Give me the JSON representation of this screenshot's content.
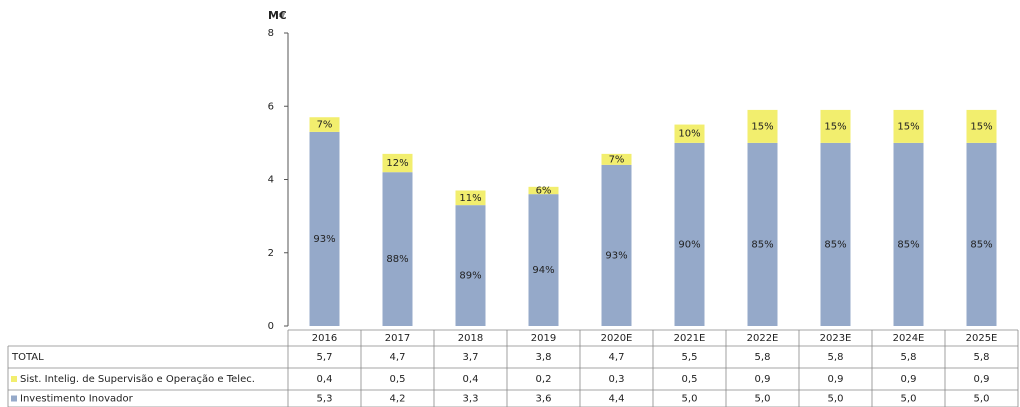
{
  "chart_data": {
    "type": "stacked-bar",
    "y_label": "M€",
    "categories": [
      "2016",
      "2017",
      "2018",
      "2019",
      "2020E",
      "2021E",
      "2022E",
      "2023E",
      "2024E",
      "2025E"
    ],
    "series": [
      {
        "name": "Investimento Inovador",
        "color": "#95a9c9",
        "values": [
          5.3,
          4.2,
          3.3,
          3.6,
          4.4,
          5.0,
          5.0,
          5.0,
          5.0,
          5.0
        ],
        "value_labels": [
          "5,3",
          "4,2",
          "3,3",
          "3,6",
          "4,4",
          "5,0",
          "5,0",
          "5,0",
          "5,0",
          "5,0"
        ],
        "share_labels": [
          "93%",
          "88%",
          "89%",
          "94%",
          "93%",
          "90%",
          "85%",
          "85%",
          "85%",
          "85%"
        ]
      },
      {
        "name": "Sist. Intelig. de Supervisão e Operação e Telec.",
        "color": "#f2ee6e",
        "values": [
          0.4,
          0.5,
          0.4,
          0.2,
          0.3,
          0.5,
          0.9,
          0.9,
          0.9,
          0.9
        ],
        "value_labels": [
          "0,4",
          "0,5",
          "0,4",
          "0,2",
          "0,3",
          "0,5",
          "0,9",
          "0,9",
          "0,9",
          "0,9"
        ],
        "share_labels": [
          "7%",
          "12%",
          "11%",
          "6%",
          "7%",
          "10%",
          "15%",
          "15%",
          "15%",
          "15%"
        ]
      }
    ],
    "total_name": "TOTAL",
    "totals": [
      5.7,
      4.7,
      3.7,
      3.8,
      4.7,
      5.5,
      5.8,
      5.8,
      5.8,
      5.8
    ],
    "total_labels": [
      "5,7",
      "4,7",
      "3,7",
      "3,8",
      "4,7",
      "5,5",
      "5,8",
      "5,8",
      "5,8",
      "5,8"
    ],
    "ylim": [
      0,
      8
    ],
    "yticks": [
      0,
      2,
      4,
      6,
      8
    ],
    "grid": false
  }
}
